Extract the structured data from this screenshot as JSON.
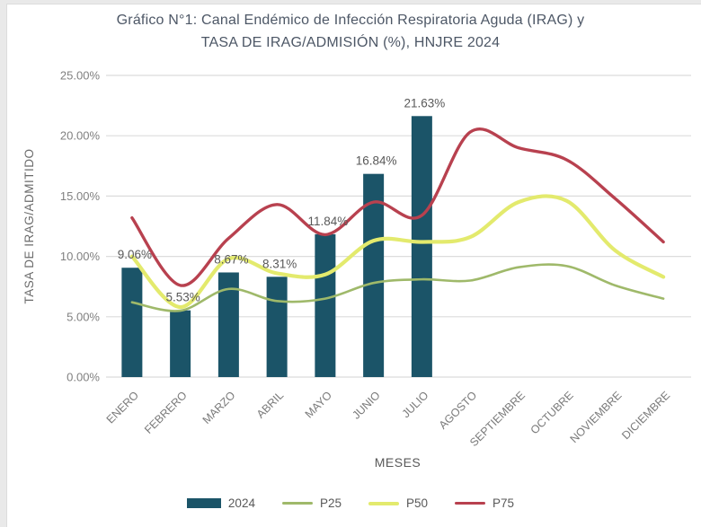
{
  "window": {
    "background": "#e9e9e9",
    "panel_background": "#ffffff"
  },
  "chart_data": {
    "type": "bar",
    "subtype": "combo-bar-line",
    "title_line1": "Gráfico N°1: Canal Endémico de Infección Respiratoria Aguda (IRAG) y",
    "title_line2": "TASA DE IRAG/ADMISIÓN (%), HNJRE 2024",
    "xlabel": "MESES",
    "ylabel": "TASA DE IRAG/ADMITIDO",
    "ylim": [
      0,
      25
    ],
    "ytick_step": 5,
    "yticks": [
      "0.00%",
      "5.00%",
      "10.00%",
      "15.00%",
      "20.00%",
      "25.00%"
    ],
    "grid": true,
    "legend_position": "bottom",
    "categories": [
      "ENERO",
      "FEBRERO",
      "MARZO",
      "ABRIL",
      "MAYO",
      "JUNIO",
      "JULIO",
      "AGOSTO",
      "SEPTIEMBRE",
      "OCTUBRE",
      "NOVIEMBRE",
      "DICIEMBRE"
    ],
    "bar_series": {
      "name": "2024",
      "color": "#1b5468",
      "values": [
        9.06,
        5.53,
        8.67,
        8.31,
        11.84,
        16.84,
        21.63
      ],
      "labels": [
        "9.06%",
        "5.53%",
        "8.67%",
        "8.31%",
        "11.84%",
        "16.84%",
        "21.63%"
      ]
    },
    "line_series": [
      {
        "name": "P25",
        "color": "#9fb96a",
        "stroke_width": 2.6,
        "values": [
          6.2,
          5.5,
          7.3,
          6.3,
          6.5,
          7.8,
          8.1,
          8.0,
          9.1,
          9.2,
          7.6,
          6.5
        ]
      },
      {
        "name": "P50",
        "color": "#e3ea6d",
        "stroke_width": 4.2,
        "values": [
          10.0,
          5.8,
          9.8,
          8.6,
          8.5,
          11.3,
          11.2,
          11.6,
          14.5,
          14.6,
          10.5,
          8.3
        ]
      },
      {
        "name": "P75",
        "color": "#b8414f",
        "stroke_width": 3.4,
        "values": [
          13.2,
          7.6,
          11.5,
          14.3,
          11.8,
          14.5,
          13.4,
          20.3,
          19.0,
          18.0,
          14.8,
          11.2
        ]
      }
    ]
  },
  "styles": {
    "gridline_color": "#dcdcdc",
    "tick_label_color": "#808080",
    "axis_title_color": "#6b6b6b",
    "bar_label_color": "#595959",
    "title_color": "#4d5766"
  }
}
